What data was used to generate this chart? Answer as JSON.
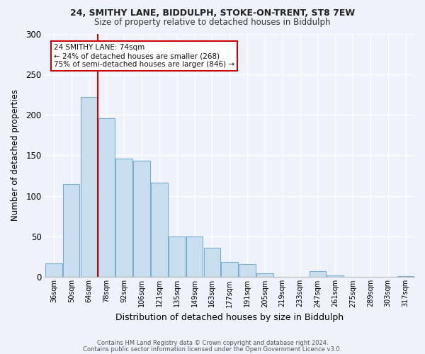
{
  "title1": "24, SMITHY LANE, BIDDULPH, STOKE-ON-TRENT, ST8 7EW",
  "title2": "Size of property relative to detached houses in Biddulph",
  "xlabel": "Distribution of detached houses by size in Biddulph",
  "ylabel": "Number of detached properties",
  "bar_labels": [
    "36sqm",
    "50sqm",
    "64sqm",
    "78sqm",
    "92sqm",
    "106sqm",
    "121sqm",
    "135sqm",
    "149sqm",
    "163sqm",
    "177sqm",
    "191sqm",
    "205sqm",
    "219sqm",
    "233sqm",
    "247sqm",
    "261sqm",
    "275sqm",
    "289sqm",
    "303sqm",
    "317sqm"
  ],
  "bar_values": [
    17,
    115,
    222,
    196,
    146,
    143,
    116,
    50,
    50,
    36,
    19,
    16,
    5,
    0,
    0,
    7,
    2,
    0,
    0,
    0,
    1
  ],
  "bar_color": "#c9dff0",
  "bar_edge_color": "#7aaecb",
  "vline_x": 2.5,
  "vline_color": "#cc0000",
  "annotation_text": "24 SMITHY LANE: 74sqm\n← 24% of detached houses are smaller (268)\n75% of semi-detached houses are larger (846) →",
  "annotation_box_color": "#ffffff",
  "annotation_box_edge": "#cc0000",
  "ylim": [
    0,
    300
  ],
  "yticks": [
    0,
    50,
    100,
    150,
    200,
    250,
    300
  ],
  "footer1": "Contains HM Land Registry data © Crown copyright and database right 2024.",
  "footer2": "Contains public sector information licensed under the Open Government Licence v3.0.",
  "bg_color": "#eef2fb"
}
